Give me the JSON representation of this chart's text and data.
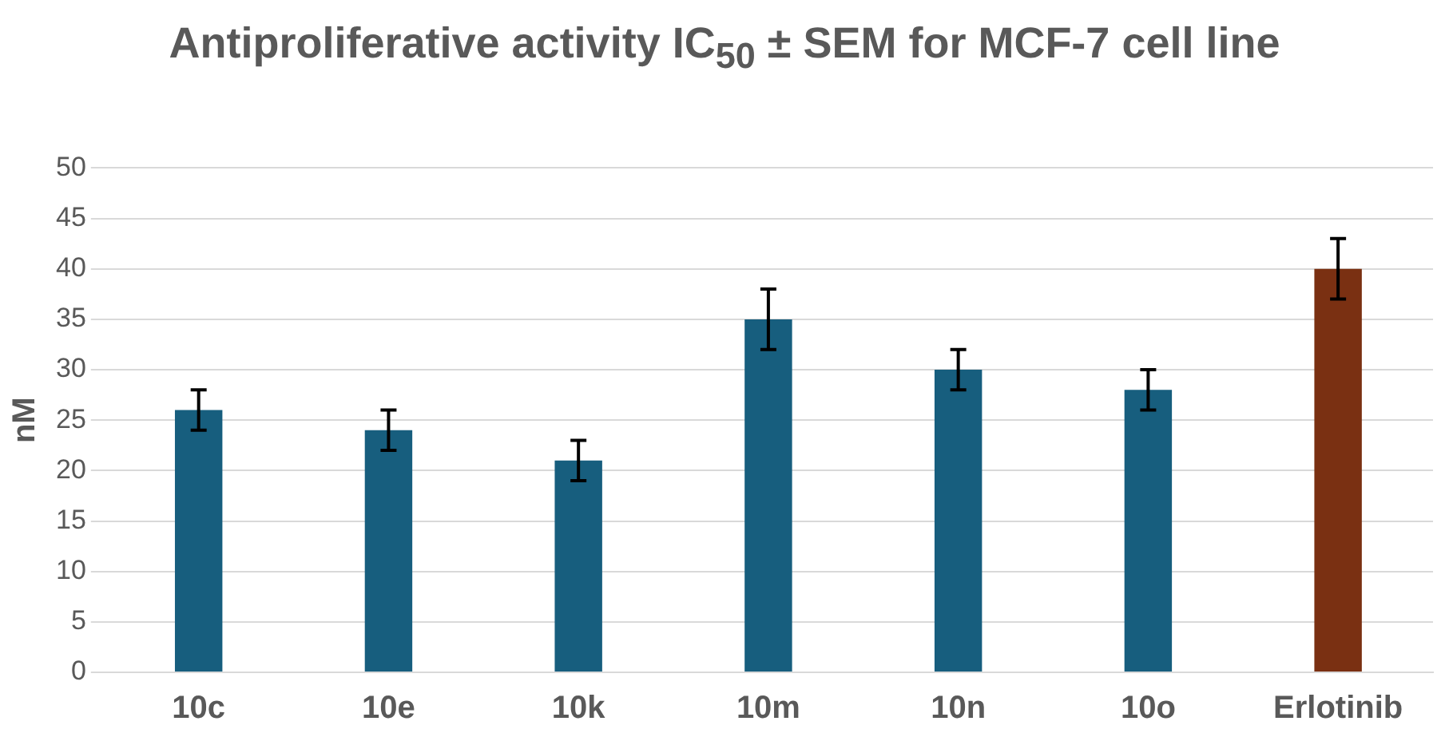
{
  "chart_data": {
    "type": "bar",
    "title": "Antiproliferative activity IC$_{50}$ ± SEM for MCF-7 cell line",
    "ylabel": "nM",
    "categories": [
      "10c",
      "10e",
      "10k",
      "10m",
      "10n",
      "10o",
      "Erlotinib"
    ],
    "values": [
      26,
      24,
      21,
      35,
      30,
      28,
      40
    ],
    "errors": [
      2,
      2,
      2,
      3,
      2,
      2,
      3
    ],
    "colors": [
      "#175e7e",
      "#175e7e",
      "#175e7e",
      "#175e7e",
      "#175e7e",
      "#175e7e",
      "#7a3012"
    ],
    "ylim": [
      0,
      50
    ],
    "yticks": [
      0,
      5,
      10,
      15,
      20,
      25,
      30,
      35,
      40,
      45,
      50
    ],
    "grid": "y",
    "legend": false
  }
}
